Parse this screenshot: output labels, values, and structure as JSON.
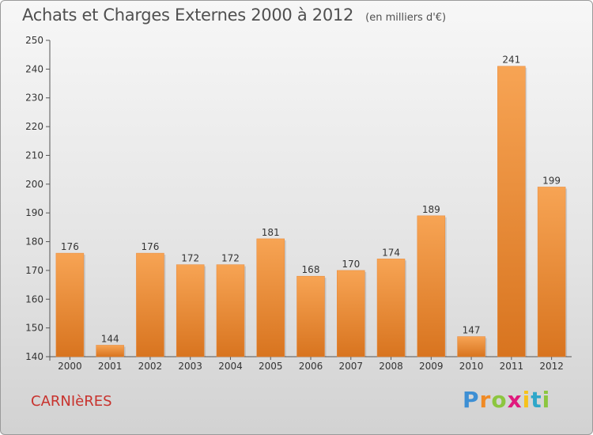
{
  "chart_data": {
    "type": "bar",
    "title": "Achats et Charges Externes 2000 à 2012",
    "subtitle": "(en milliers d'€)",
    "categories": [
      "2000",
      "2001",
      "2002",
      "2003",
      "2004",
      "2005",
      "2006",
      "2007",
      "2008",
      "2009",
      "2010",
      "2011",
      "2012"
    ],
    "values": [
      176,
      144,
      176,
      172,
      172,
      181,
      168,
      170,
      174,
      189,
      147,
      241,
      199
    ],
    "data_labels": [
      "176",
      "144",
      "176",
      "172",
      "172",
      "181",
      "168",
      "170",
      "174",
      "189",
      "147",
      "241",
      "199"
    ],
    "ylim": [
      140,
      250
    ],
    "yticks": [
      "140",
      "150",
      "160",
      "170",
      "180",
      "190",
      "200",
      "210",
      "220",
      "230",
      "240",
      "250"
    ],
    "grid": false,
    "bar_color_top": "#f7a454",
    "bar_color_bottom": "#d8741f"
  },
  "location_label": "CARNIèRES",
  "brand": {
    "letters": [
      "P",
      "r",
      "o",
      "x",
      "i",
      "t",
      "i"
    ],
    "colors": [
      "#3d8fd4",
      "#f08a24",
      "#8cc63f",
      "#e0197d",
      "#f6c21a",
      "#2fa7c9",
      "#8cc63f"
    ]
  }
}
